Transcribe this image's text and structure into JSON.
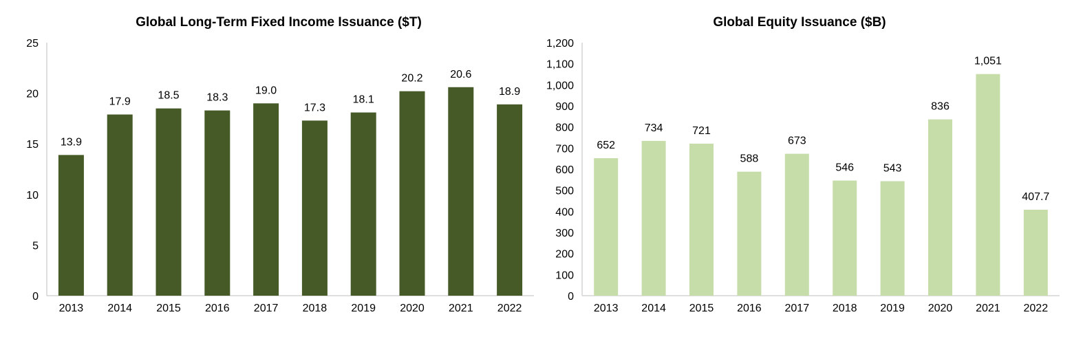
{
  "chart_data": [
    {
      "type": "bar",
      "title": "Global Long-Term Fixed Income Issuance ($T)",
      "categories": [
        "2013",
        "2014",
        "2015",
        "2016",
        "2017",
        "2018",
        "2019",
        "2020",
        "2021",
        "2022"
      ],
      "values": [
        13.9,
        17.9,
        18.5,
        18.3,
        19.0,
        17.3,
        18.1,
        20.2,
        20.6,
        18.9
      ],
      "data_labels": [
        "13.9",
        "17.9",
        "18.5",
        "18.3",
        "19.0",
        "17.3",
        "18.1",
        "20.2",
        "20.6",
        "18.9"
      ],
      "ylim": [
        0,
        25
      ],
      "yticks": [
        0,
        5,
        10,
        15,
        20,
        25
      ],
      "ytick_labels": [
        "0",
        "5",
        "10",
        "15",
        "20",
        "25"
      ],
      "xlabel": "",
      "ylabel": "",
      "grid": false,
      "legend": "none",
      "bar_color": "#455a27"
    },
    {
      "type": "bar",
      "title": "Global Equity Issuance ($B)",
      "categories": [
        "2013",
        "2014",
        "2015",
        "2016",
        "2017",
        "2018",
        "2019",
        "2020",
        "2021",
        "2022"
      ],
      "values": [
        652,
        734,
        721,
        588,
        673,
        546,
        543,
        836,
        1051,
        407.7
      ],
      "data_labels": [
        "652",
        "734",
        "721",
        "588",
        "673",
        "546",
        "543",
        "836",
        "1,051",
        "407.7"
      ],
      "ylim": [
        0,
        1200
      ],
      "yticks": [
        0,
        100,
        200,
        300,
        400,
        500,
        600,
        700,
        800,
        900,
        1000,
        1100,
        1200
      ],
      "ytick_labels": [
        "0",
        "100",
        "200",
        "300",
        "400",
        "500",
        "600",
        "700",
        "800",
        "900",
        "1,000",
        "1,100",
        "1,200"
      ],
      "xlabel": "",
      "ylabel": "",
      "grid": false,
      "legend": "none",
      "bar_color": "#c6ddaa"
    }
  ]
}
